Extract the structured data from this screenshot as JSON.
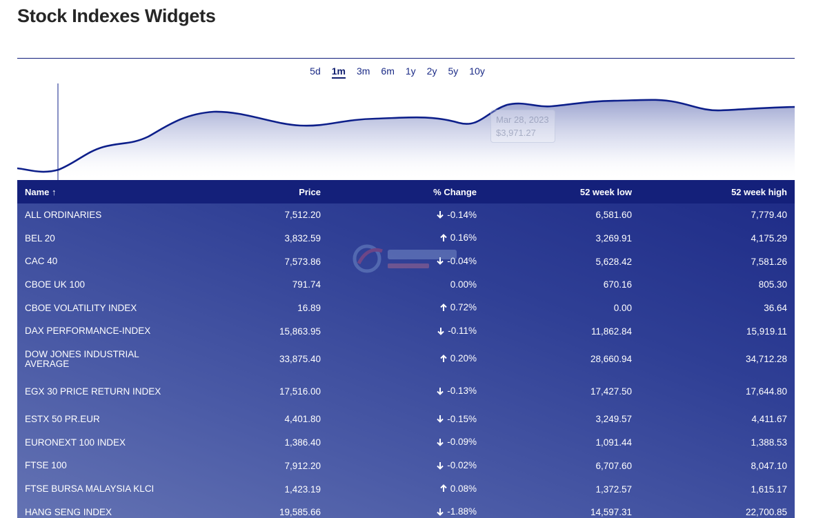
{
  "page": {
    "title": "Stock Indexes Widgets"
  },
  "range_tabs": [
    {
      "label": "5d",
      "active": false
    },
    {
      "label": "1m",
      "active": true
    },
    {
      "label": "3m",
      "active": false
    },
    {
      "label": "6m",
      "active": false
    },
    {
      "label": "1y",
      "active": false
    },
    {
      "label": "2y",
      "active": false
    },
    {
      "label": "5y",
      "active": false
    },
    {
      "label": "10y",
      "active": false
    }
  ],
  "chart": {
    "tooltip_date": "Mar 28, 2023",
    "tooltip_value": "$3,971.27",
    "line_color": "#0d1f8a"
  },
  "table": {
    "headers": {
      "name": "Name ↑",
      "price": "Price",
      "change": "% Change",
      "low": "52 week low",
      "high": "52 week high"
    },
    "rows": [
      {
        "name": "ALL ORDINARIES",
        "price": "7,512.20",
        "change": "-0.14%",
        "dir": "down",
        "low": "6,581.60",
        "high": "7,779.40"
      },
      {
        "name": "BEL 20",
        "price": "3,832.59",
        "change": "0.16%",
        "dir": "up",
        "low": "3,269.91",
        "high": "4,175.29"
      },
      {
        "name": "CAC 40",
        "price": "7,573.86",
        "change": "-0.04%",
        "dir": "down",
        "low": "5,628.42",
        "high": "7,581.26"
      },
      {
        "name": "CBOE UK 100",
        "price": "791.74",
        "change": "0.00%",
        "dir": "none",
        "low": "670.16",
        "high": "805.30"
      },
      {
        "name": "CBOE VOLATILITY INDEX",
        "price": "16.89",
        "change": "0.72%",
        "dir": "up",
        "low": "0.00",
        "high": "36.64"
      },
      {
        "name": "DAX PERFORMANCE-INDEX",
        "price": "15,863.95",
        "change": "-0.11%",
        "dir": "down",
        "low": "11,862.84",
        "high": "15,919.11"
      },
      {
        "name": "DOW JONES INDUSTRIAL AVERAGE",
        "price": "33,875.40",
        "change": "0.20%",
        "dir": "up",
        "low": "28,660.94",
        "high": "34,712.28"
      },
      {
        "name": "EGX 30 PRICE RETURN INDEX",
        "price": "17,516.00",
        "change": "-0.13%",
        "dir": "down",
        "low": "17,427.50",
        "high": "17,644.80"
      },
      {
        "name": "ESTX 50 PR.EUR",
        "price": "4,401.80",
        "change": "-0.15%",
        "dir": "down",
        "low": "3,249.57",
        "high": "4,411.67"
      },
      {
        "name": "EURONEXT 100 INDEX",
        "price": "1,386.40",
        "change": "-0.09%",
        "dir": "down",
        "low": "1,091.44",
        "high": "1,388.53"
      },
      {
        "name": "FTSE 100",
        "price": "7,912.20",
        "change": "-0.02%",
        "dir": "down",
        "low": "6,707.60",
        "high": "8,047.10"
      },
      {
        "name": "FTSE BURSA MALAYSIA KLCI",
        "price": "1,423.19",
        "change": "0.08%",
        "dir": "up",
        "low": "1,372.57",
        "high": "1,615.17"
      },
      {
        "name": "HANG SENG INDEX",
        "price": "19,585.66",
        "change": "-1.88%",
        "dir": "down",
        "low": "14,597.31",
        "high": "22,700.85"
      }
    ]
  }
}
